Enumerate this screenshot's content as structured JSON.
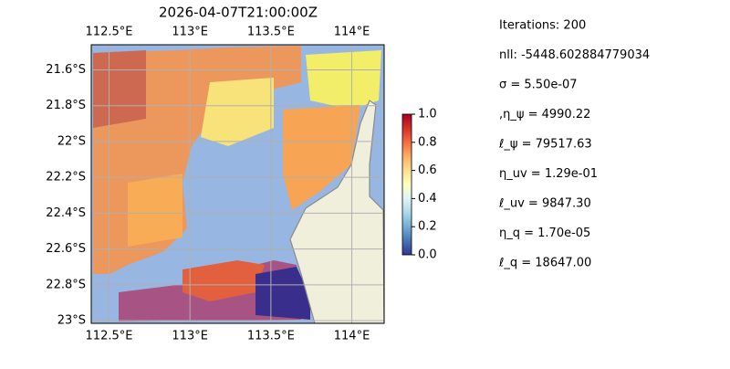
{
  "title": "2026-04-07T21:00:00Z",
  "map": {
    "xlim": [
      112.39,
      114.2
    ],
    "ylim": [
      -21.46,
      -23.015
    ],
    "lon_ticks": [
      {
        "value": 112.5,
        "label": "112.5°E"
      },
      {
        "value": 113,
        "label": "113°E"
      },
      {
        "value": 113.5,
        "label": "113.5°E"
      },
      {
        "value": 114,
        "label": "114°E"
      }
    ],
    "lat_ticks": [
      {
        "value": -21.6,
        "label": "21.6°S"
      },
      {
        "value": -21.8,
        "label": "21.8°S"
      },
      {
        "value": -22,
        "label": "22°S"
      },
      {
        "value": -22.2,
        "label": "22.2°S"
      },
      {
        "value": -22.4,
        "label": "22.4°S"
      },
      {
        "value": -22.6,
        "label": "22.6°S"
      },
      {
        "value": -22.8,
        "label": "22.8°S"
      },
      {
        "value": -23,
        "label": "23°S"
      }
    ],
    "grid": true,
    "colorbar": {
      "lim": [
        0,
        1
      ],
      "ticks": [
        {
          "value": 0,
          "label": "0.0"
        },
        {
          "value": 0.2,
          "label": "0.2"
        },
        {
          "value": 0.4,
          "label": "0.4"
        },
        {
          "value": 0.6,
          "label": "0.6"
        },
        {
          "value": 0.8,
          "label": "0.8"
        },
        {
          "value": 1,
          "label": "1.0"
        }
      ]
    }
  },
  "params": [
    "Iterations: 200",
    "nll: -5448.602884779034",
    "σ = 5.50e-07",
    ",η_ψ = 4990.22",
    "ℓ_ψ = 79517.63",
    "η_uv = 1.29e-01",
    "ℓ_uv = 9847.30",
    "η_q = 1.70e-05",
    "ℓ_q = 18647.00"
  ]
}
